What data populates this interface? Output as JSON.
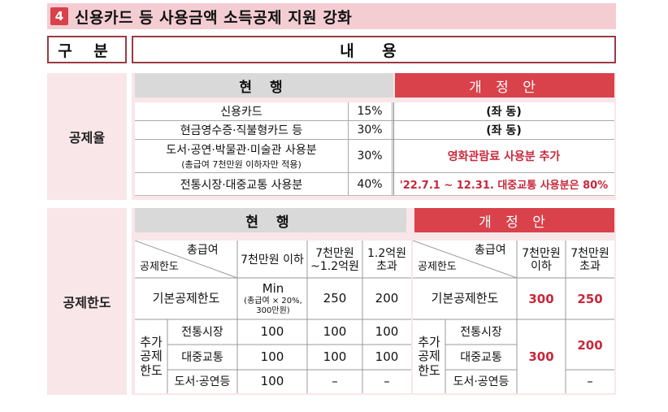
{
  "title": {
    "number": "4",
    "text": "신용카드 등 사용금액 소득공제 지원 강화"
  },
  "header": {
    "gubun": "구 분",
    "naeyong": "내 용"
  },
  "section1": {
    "label": "공제율",
    "current_header": "현 행",
    "proposal_header": "개 정 안",
    "rows": [
      {
        "item": "신용카드",
        "rate": "15%",
        "proposal": "(좌 동)"
      },
      {
        "item": "현금영수증·직불형카드 등",
        "rate": "30%",
        "proposal": "(좌 동)"
      },
      {
        "item": "도서·공연·박물관·미술관 사용분",
        "note": "(총급여 7천만원 이하자만 적용)",
        "rate": "30%",
        "proposal": "영화관람료 사용분 추가"
      },
      {
        "item": "전통시장·대중교통 사용분",
        "rate": "40%",
        "proposal": "'22.7.1 ~ 12.31. 대중교통 사용분은 80%"
      }
    ]
  },
  "section2": {
    "label": "공제한도",
    "current_header": "현 행",
    "proposal_header": "개 정 안",
    "current": {
      "diag_top": "총급여",
      "diag_bottom": "공제한도",
      "cols": [
        "7천만원 이하",
        "7천만원 ~1.2억원",
        "1.2억원 초과"
      ],
      "basic_label": "기본공제한도",
      "basic_values": {
        "main": "Min",
        "note": "(총급여 × 20%, 300만원)",
        "v2": "250",
        "v3": "200"
      },
      "extra_label": "추가 공제 한도",
      "extra_rows": [
        {
          "label": "전통시장",
          "values": [
            "100",
            "100",
            "100"
          ]
        },
        {
          "label": "대중교통",
          "values": [
            "100",
            "100",
            "100"
          ]
        },
        {
          "label": "도서·공연등",
          "values": [
            "100",
            "–",
            "–"
          ]
        }
      ]
    },
    "proposal": {
      "diag_top": "총급여",
      "diag_bottom": "공제한도",
      "cols": [
        "7천만원 이하",
        "7천만원 초과"
      ],
      "basic_label": "기본공제한도",
      "basic_values": [
        "300",
        "250"
      ],
      "extra_label": "추가 공제 한도",
      "extra_row_labels": [
        "전통시장",
        "대중교통",
        "도서·공연등"
      ],
      "extra_col1": "300",
      "extra_col2_top": "200",
      "extra_col2_bottom": "–"
    }
  }
}
